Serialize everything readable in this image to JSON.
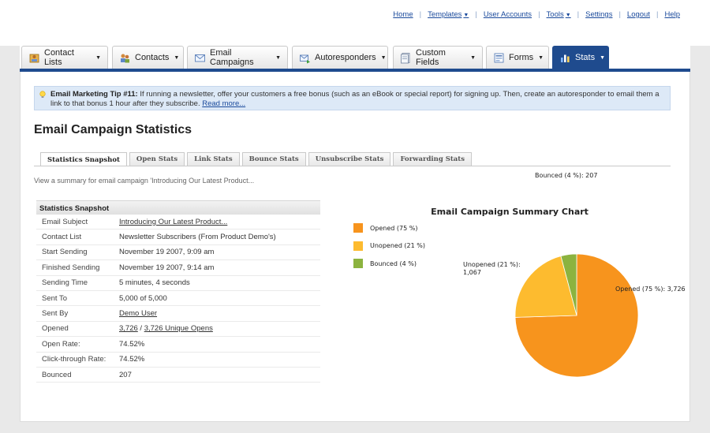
{
  "toplinks": [
    {
      "label": "Home",
      "caret": false
    },
    {
      "label": "Templates",
      "caret": true
    },
    {
      "label": "User Accounts",
      "caret": false
    },
    {
      "label": "Tools",
      "caret": true
    },
    {
      "label": "Settings",
      "caret": false
    },
    {
      "label": "Logout",
      "caret": false
    },
    {
      "label": "Help",
      "caret": false
    }
  ],
  "nav": [
    {
      "label": "Contact Lists",
      "icon": "contact-lists-icon"
    },
    {
      "label": "Contacts",
      "icon": "contacts-icon"
    },
    {
      "label": "Email Campaigns",
      "icon": "envelope-icon"
    },
    {
      "label": "Autoresponders",
      "icon": "autoresponder-icon"
    },
    {
      "label": "Custom Fields",
      "icon": "custom-fields-icon"
    },
    {
      "label": "Forms",
      "icon": "forms-icon"
    },
    {
      "label": "Stats",
      "icon": "stats-icon",
      "active": true
    }
  ],
  "tip": {
    "title": "Email Marketing Tip #11:",
    "text": " If running a newsletter, offer your customers a free bonus (such as an eBook or special report) for signing up. Then, create an autoresponder to email them a link to that bonus 1 hour after they subscribe. ",
    "more": "Read more..."
  },
  "page_title": "Email Campaign Statistics",
  "subtabs": [
    "Statistics Snapshot",
    "Open Stats",
    "Link Stats",
    "Bounce Stats",
    "Unsubscribe Stats",
    "Forwarding Stats"
  ],
  "view_summary": "View a summary for email campaign 'Introducing Our Latest Product...",
  "snapshot": {
    "heading": "Statistics Snapshot",
    "rows": [
      {
        "key": "Email Subject",
        "value": "Introducing Our Latest Product...",
        "link": true
      },
      {
        "key": "Contact List",
        "value": "Newsletter Subscribers (From Product Demo's)"
      },
      {
        "key": "Start Sending",
        "value": "November 19 2007, 9:09 am"
      },
      {
        "key": "Finished Sending",
        "value": "November 19 2007, 9:14 am"
      },
      {
        "key": "Sending Time",
        "value": "5 minutes, 4 seconds"
      },
      {
        "key": "Sent To",
        "value": "5,000 of 5,000"
      },
      {
        "key": "Sent By",
        "value": "Demo User",
        "link": true
      },
      {
        "key": "Opened",
        "value_a": "3,726",
        "value_sep": " / ",
        "value_b": "3,726 Unique Opens",
        "split": true
      },
      {
        "key": "Open Rate:",
        "value": "74.52%"
      },
      {
        "key": "Click-through Rate:",
        "value": "74.52%"
      },
      {
        "key": "Bounced",
        "value": "207"
      }
    ]
  },
  "chart_data": {
    "type": "pie",
    "title": "Email Campaign Summary Chart",
    "slices": [
      {
        "name": "Opened",
        "legend": "Opened (75 %)",
        "label": "Opened (75 %): 3,726",
        "value": 3726,
        "color": "#f7941d"
      },
      {
        "name": "Unopened",
        "legend": "Unopened (21 %)",
        "label": "Unopened (21 %): 1,067",
        "value": 1067,
        "color": "#fdbb2f"
      },
      {
        "name": "Bounced",
        "legend": "Bounced (4 %)",
        "label": "Bounced (4 %): 207",
        "value": 207,
        "color": "#8cb33f"
      }
    ],
    "legend_position": "left"
  }
}
